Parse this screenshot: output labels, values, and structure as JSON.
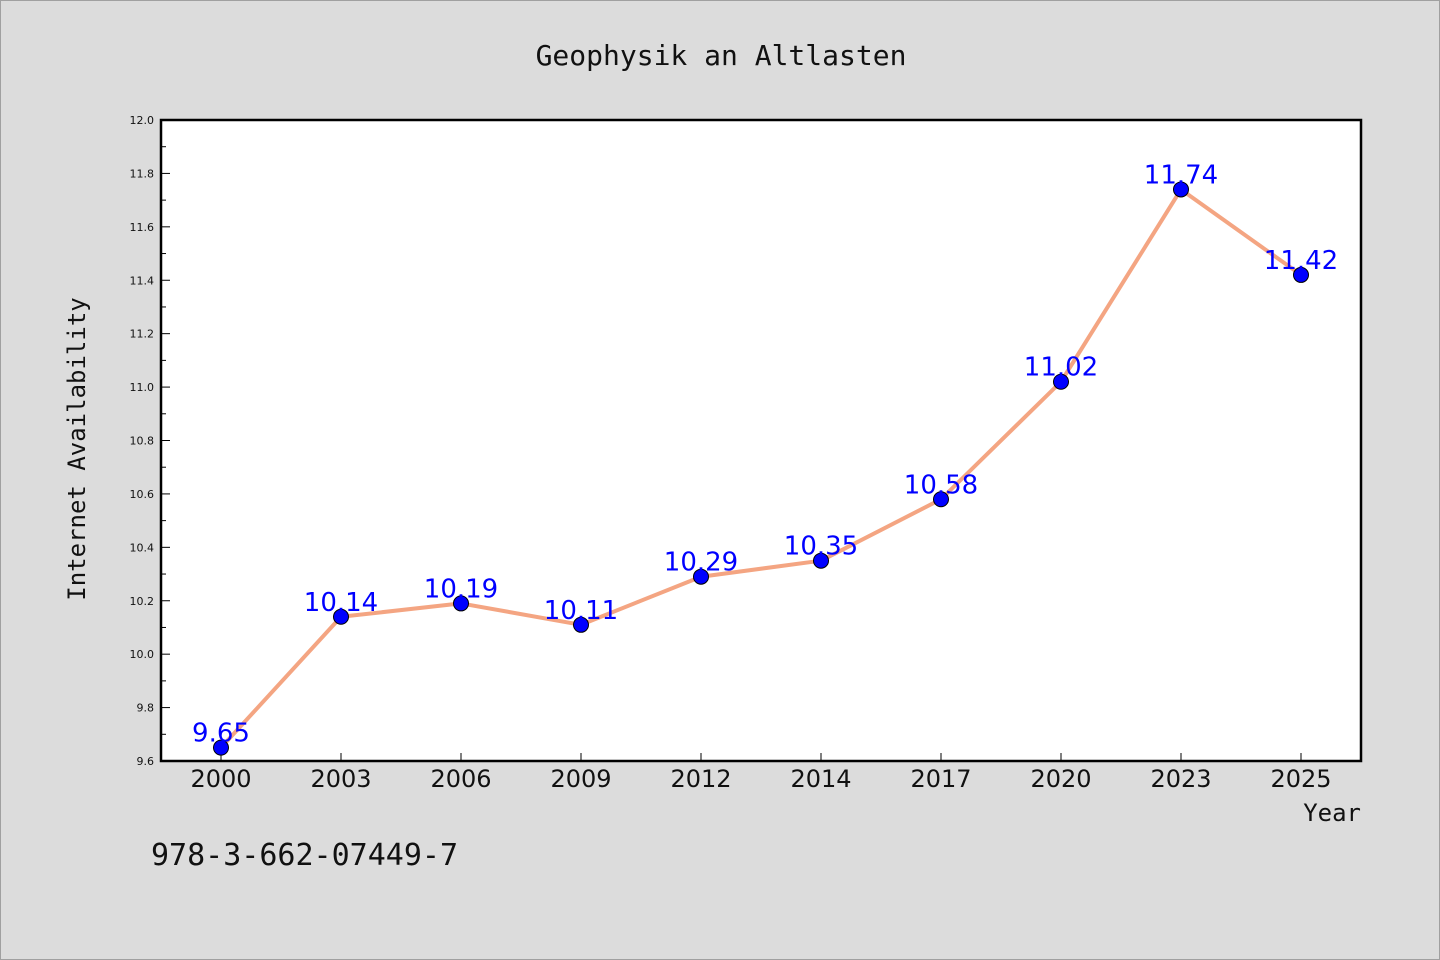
{
  "chart_data": {
    "type": "line",
    "title": "Geophysik an Altlasten",
    "xlabel": "Year",
    "ylabel": "Internet Availability",
    "categories": [
      "2000",
      "2003",
      "2006",
      "2009",
      "2012",
      "2014",
      "2017",
      "2020",
      "2023",
      "2025"
    ],
    "series": [
      {
        "values": [
          9.65,
          10.14,
          10.19,
          10.11,
          10.29,
          10.35,
          10.58,
          11.02,
          11.74,
          11.42
        ],
        "labels": [
          "9.65",
          "10.14",
          "10.19",
          "10.11",
          "10.29",
          "10.35",
          "10.58",
          "11.02",
          "11.74",
          "11.42"
        ],
        "line_color": "#f4a582",
        "marker_color": "#0000ff",
        "label_color": "#0000ff"
      }
    ],
    "ylim": [
      9.6,
      12.0
    ],
    "yticks": [
      9.6,
      9.8,
      10.0,
      10.2,
      10.4,
      10.6,
      10.8,
      11.0,
      11.2,
      11.4,
      11.6,
      11.8,
      12.0
    ],
    "ytick_labels": [
      "9.6",
      "9.8",
      "10.0",
      "10.2",
      "10.4",
      "10.6",
      "10.8",
      "11.0",
      "11.2",
      "11.4",
      "11.6",
      "11.8",
      "12.0"
    ],
    "grid": false,
    "legend": "none"
  },
  "annotation": "978-3-662-07449-7"
}
